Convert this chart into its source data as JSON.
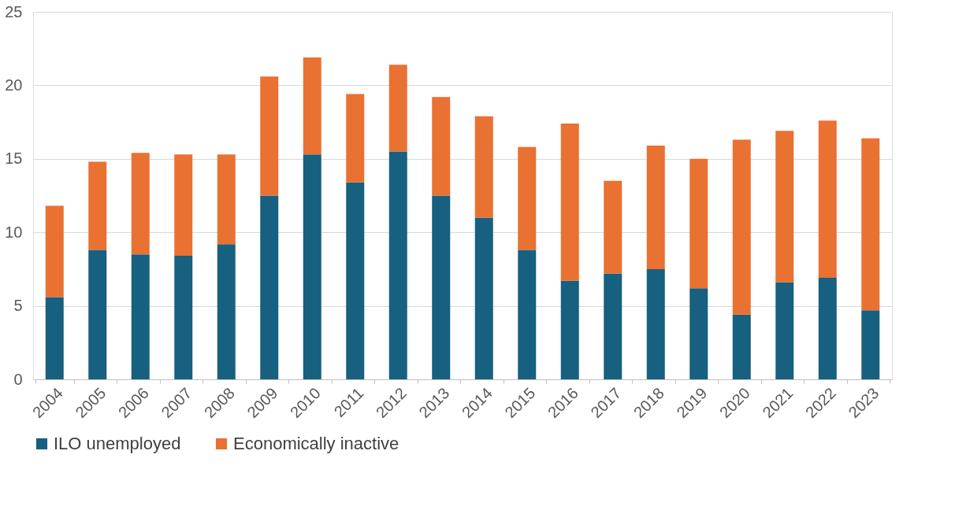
{
  "chart_data": {
    "type": "bar",
    "stacked": true,
    "categories": [
      "2004",
      "2005",
      "2006",
      "2007",
      "2008",
      "2009",
      "2010",
      "2011",
      "2012",
      "2013",
      "2014",
      "2015",
      "2016",
      "2017",
      "2018",
      "2019",
      "2020",
      "2021",
      "2022",
      "2023"
    ],
    "series": [
      {
        "name": "ILO unemployed",
        "color": "#17607f",
        "values": [
          5.6,
          8.8,
          8.5,
          8.4,
          9.2,
          12.5,
          15.3,
          13.4,
          15.5,
          12.5,
          11.0,
          8.8,
          6.7,
          7.2,
          7.5,
          6.2,
          4.4,
          6.6,
          6.9,
          4.7
        ]
      },
      {
        "name": "Economically inactive",
        "color": "#e97132",
        "values": [
          6.2,
          6.0,
          6.9,
          6.9,
          6.1,
          8.1,
          6.6,
          6.0,
          5.9,
          6.7,
          6.9,
          7.0,
          10.7,
          6.3,
          8.4,
          8.8,
          11.9,
          10.3,
          10.7,
          11.7
        ]
      }
    ],
    "ylim": [
      0,
      25
    ],
    "yticks": [
      0,
      5,
      10,
      15,
      20,
      25
    ],
    "grid": "y",
    "legend": "bottom"
  }
}
